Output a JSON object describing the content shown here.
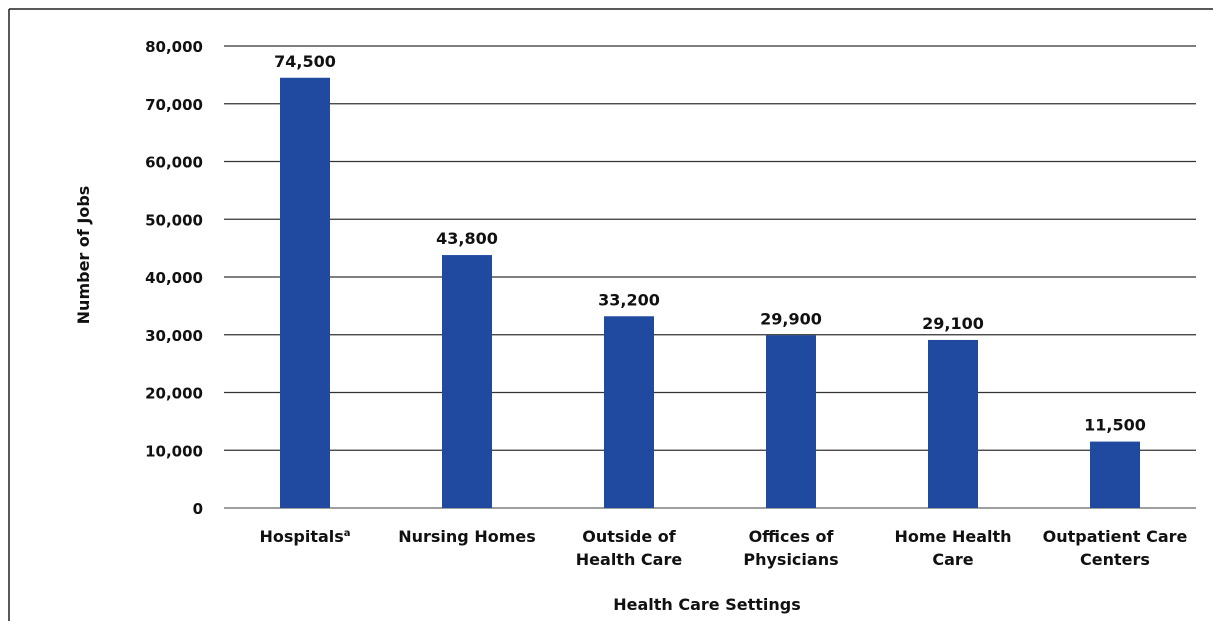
{
  "chart_data": {
    "type": "bar",
    "categories": [
      [
        "Hospitals"
      ],
      [
        "Nursing Homes"
      ],
      [
        "Outside of",
        "Health Care"
      ],
      [
        "Offices of",
        "Physicians"
      ],
      [
        "Home Health",
        "Care"
      ],
      [
        "Outpatient Care",
        "Centers"
      ]
    ],
    "category_footnotes": [
      "a",
      "",
      "",
      "",
      "",
      ""
    ],
    "values": [
      74500,
      43800,
      33200,
      29900,
      29100,
      11500
    ],
    "value_labels": [
      "74,500",
      "43,800",
      "33,200",
      "29,900",
      "29,100",
      "11,500"
    ],
    "title": "",
    "xlabel": "Health Care Settings",
    "ylabel": "Number of Jobs",
    "ylim": [
      0,
      80000
    ],
    "yticks": [
      0,
      10000,
      20000,
      30000,
      40000,
      50000,
      60000,
      70000,
      80000
    ],
    "ytick_labels": [
      "0",
      "10,000",
      "20,000",
      "30,000",
      "40,000",
      "50,000",
      "60,000",
      "70,000",
      "80,000"
    ],
    "grid": true,
    "legend": "none",
    "colors": {
      "bar": "#1f4aa0",
      "grid": "#333333",
      "text": "#111111",
      "frame": "#222222"
    }
  }
}
